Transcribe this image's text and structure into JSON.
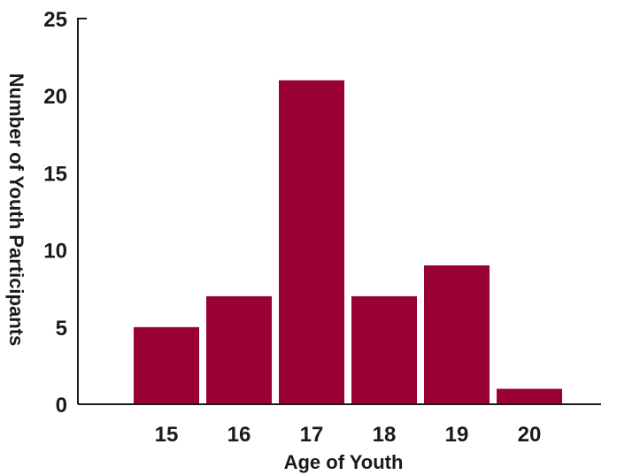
{
  "chart_data": {
    "type": "bar",
    "categories": [
      "15",
      "16",
      "17",
      "18",
      "19",
      "20"
    ],
    "values": [
      5,
      7,
      21,
      7,
      9,
      1
    ],
    "title": "",
    "xlabel": "Age of Youth",
    "ylabel": "Number of Youth Participants",
    "ylim": [
      0,
      25
    ],
    "yticks": [
      "0",
      "5",
      "10",
      "15",
      "20",
      "25"
    ],
    "bar_color": "#990033",
    "grid": false,
    "legend": "none"
  }
}
